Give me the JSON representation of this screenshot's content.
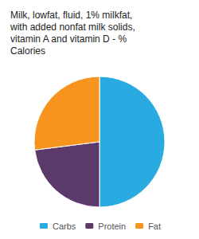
{
  "chart_data": {
    "type": "pie",
    "title": "Milk, lowfat, fluid, 1% milkfat,\nwith added nonfat milk solids,\nvitamin A and vitamin D - %\nCalories",
    "categories": [
      "Carbs",
      "Protein",
      "Fat"
    ],
    "values": [
      50,
      23,
      27
    ],
    "colors": [
      "#29ABE2",
      "#5B3A6B",
      "#F7941D"
    ],
    "legend": "bottom"
  }
}
